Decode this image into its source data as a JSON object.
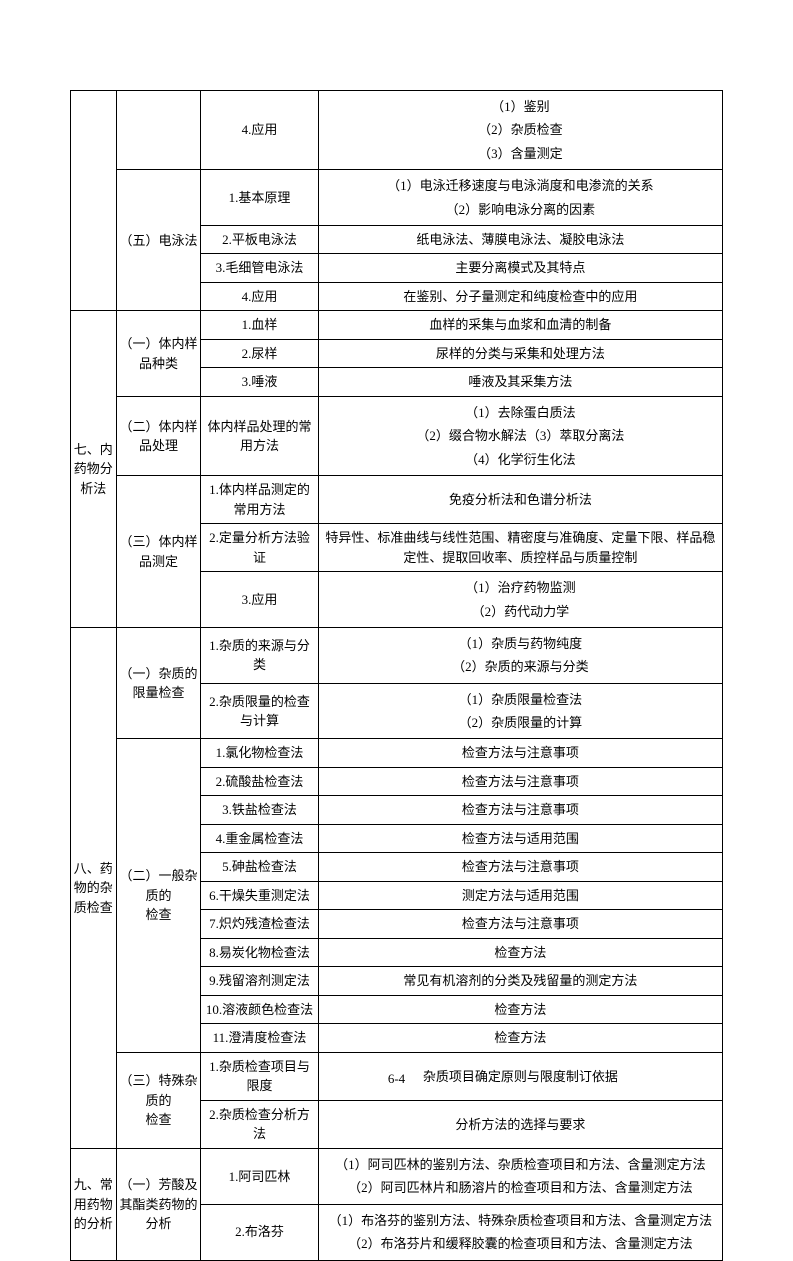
{
  "pageNumber": "6-4",
  "rows": [
    {
      "c1": null,
      "c2": null,
      "c3": "4.应用",
      "c4": "（1）鉴别\n（2）杂质检查\n（3）含量测定"
    },
    {
      "c1": null,
      "c2": "（五）电泳法",
      "c2rs": 4,
      "c3": "1.基本原理",
      "c4": "（1）电泳迁移速度与电泳淌度和电渗流的关系\n（2）影响电泳分离的因素"
    },
    {
      "c1": null,
      "c2": null,
      "c3": "2.平板电泳法",
      "c4": "纸电泳法、薄膜电泳法、凝胶电泳法"
    },
    {
      "c1": null,
      "c2": null,
      "c3": "3.毛细管电泳法",
      "c4": "主要分离模式及其特点"
    },
    {
      "c1": null,
      "c2": null,
      "c3": "4.应用",
      "c4": "在鉴别、分子量测定和纯度检查中的应用"
    },
    {
      "c1": "七、内药物分析法",
      "c1rs": 7,
      "c2": "（一）体内样品种类",
      "c2rs": 3,
      "c3": "1.血样",
      "c4": "血样的采集与血浆和血清的制备"
    },
    {
      "c1": null,
      "c2": null,
      "c3": "2.尿样",
      "c4": "尿样的分类与采集和处理方法"
    },
    {
      "c1": null,
      "c2": null,
      "c3": "3.唾液",
      "c4": "唾液及其采集方法"
    },
    {
      "c1": null,
      "c2": "（二）体内样品处理",
      "c2rs": 1,
      "c3": "体内样品处理的常用方法",
      "c4": "（1）去除蛋白质法\n（2）缀合物水解法（3）萃取分离法\n（4）化学衍生化法"
    },
    {
      "c1": null,
      "c2": "（三）体内样品测定",
      "c2rs": 3,
      "c3": "1.体内样品测定的常用方法",
      "c4": "免疫分析法和色谱分析法"
    },
    {
      "c1": null,
      "c2": null,
      "c3": "2.定量分析方法验证",
      "c4": "特异性、标准曲线与线性范围、精密度与准确度、定量下限、样品稳定性、提取回收率、质控样品与质量控制"
    },
    {
      "c1": null,
      "c2": null,
      "c3": "3.应用",
      "c4": "（1）治疗药物监测\n（2）药代动力学"
    },
    {
      "c1": "八、药物的杂质检查",
      "c1rs": 15,
      "c2": "（一）杂质的限量检查",
      "c2rs": 2,
      "c3": "1.杂质的来源与分类",
      "c4": "（1）杂质与药物纯度\n（2）杂质的来源与分类"
    },
    {
      "c1": null,
      "c2": null,
      "c3": "2.杂质限量的检查与计算",
      "c4": "（1）杂质限量检查法\n（2）杂质限量的计算"
    },
    {
      "c1": null,
      "c2": "（二）一般杂质的\n检查",
      "c2rs": 11,
      "c3": "1.氯化物检查法",
      "c4": "检查方法与注意事项"
    },
    {
      "c1": null,
      "c2": null,
      "c3": "2.硫酸盐检查法",
      "c4": "检查方法与注意事项"
    },
    {
      "c1": null,
      "c2": null,
      "c3": "3.铁盐检查法",
      "c4": "检查方法与注意事项"
    },
    {
      "c1": null,
      "c2": null,
      "c3": "4.重金属检查法",
      "c4": "检查方法与适用范围"
    },
    {
      "c1": null,
      "c2": null,
      "c3": "5.砷盐检查法",
      "c4": "检查方法与注意事项"
    },
    {
      "c1": null,
      "c2": null,
      "c3": "6.干燥失重测定法",
      "c4": "测定方法与适用范围"
    },
    {
      "c1": null,
      "c2": null,
      "c3": "7.炽灼残渣检查法",
      "c4": "检查方法与注意事项"
    },
    {
      "c1": null,
      "c2": null,
      "c3": "8.易炭化物检查法",
      "c4": "检查方法"
    },
    {
      "c1": null,
      "c2": null,
      "c3": "9.残留溶剂测定法",
      "c4": "常见有机溶剂的分类及残留量的测定方法"
    },
    {
      "c1": null,
      "c2": null,
      "c3": "10.溶液颜色检查法",
      "c4": "检查方法"
    },
    {
      "c1": null,
      "c2": null,
      "c3": "11.澄清度检查法",
      "c4": "检查方法"
    },
    {
      "c1": null,
      "c2": "（三）特殊杂质的\n检查",
      "c2rs": 2,
      "c3": "1.杂质检查项目与限度",
      "c4": "杂质项目确定原则与限度制订依据"
    },
    {
      "c1": null,
      "c2": null,
      "c3": "2.杂质检查分析方法",
      "c4": "分析方法的选择与要求"
    },
    {
      "c1": "九、常用药物的分析",
      "c1rs": 2,
      "c2": "（一）芳酸及其酯类药物的分析",
      "c2rs": 2,
      "c3": "1.阿司匹林",
      "c4": "（1）阿司匹林的鉴别方法、杂质检查项目和方法、含量测定方法\n（2）阿司匹林片和肠溶片的检查项目和方法、含量测定方法"
    },
    {
      "c1": null,
      "c2": null,
      "c3": "2.布洛芬",
      "c4": "（1）布洛芬的鉴别方法、特殊杂质检查项目和方法、含量测定方法\n（2）布洛芬片和缓释胶囊的检查项目和方法、含量测定方法"
    }
  ]
}
